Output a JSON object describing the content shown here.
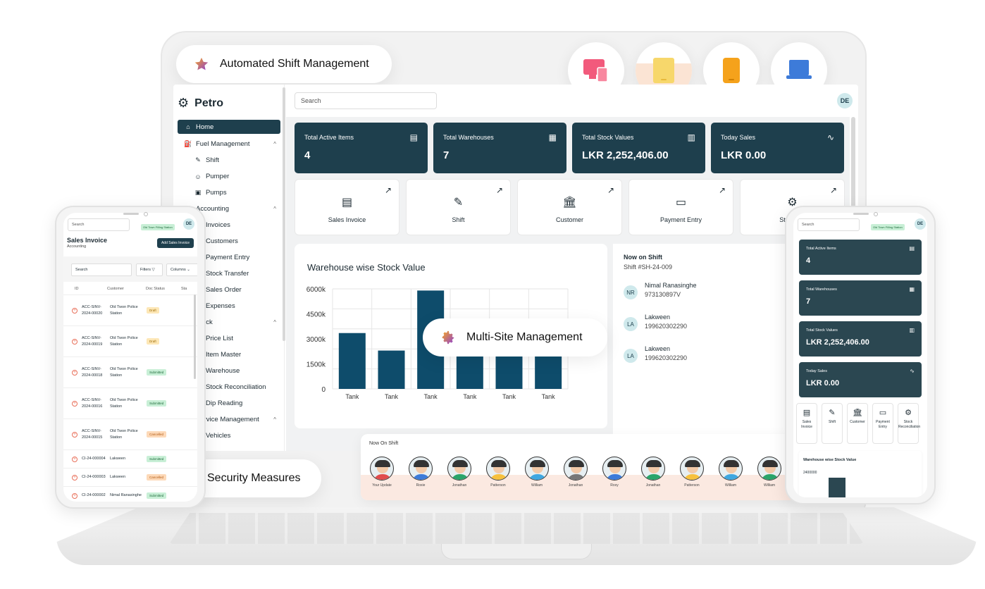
{
  "features": {
    "auto_shift": "Automated Shift Management",
    "multi_site": "Multi-Site Management",
    "security": "Security Measures"
  },
  "devices": [
    {
      "icon": "multi-device-icon",
      "color": "#f25a7c"
    },
    {
      "icon": "tablet-icon",
      "color": "#f7d76b"
    },
    {
      "icon": "phone-icon",
      "color": "#f5a21b"
    },
    {
      "icon": "laptop-icon",
      "color": "#3d7bd9"
    }
  ],
  "app": {
    "brand": "Petro",
    "search_placeholder": "Search",
    "user_initials": "DE",
    "nav": [
      {
        "label": "Home",
        "icon": "home-icon",
        "active": true
      },
      {
        "label": "Fuel Management",
        "icon": "fuel-icon"
      },
      {
        "label": "Shift",
        "icon": "shift-icon"
      },
      {
        "label": "Pumper",
        "icon": "pumper-icon"
      },
      {
        "label": "Pumps",
        "icon": "pumps-icon"
      },
      {
        "label": "Accounting"
      },
      {
        "label": "Invoices"
      },
      {
        "label": "Customers"
      },
      {
        "label": "Payment Entry"
      },
      {
        "label": "Stock Transfer"
      },
      {
        "label": "Sales Order"
      },
      {
        "label": "Expenses"
      },
      {
        "label": "Stock"
      },
      {
        "label": "Price List"
      },
      {
        "label": "Item Master"
      },
      {
        "label": "Warehouse"
      },
      {
        "label": "Stock Reconciliation"
      },
      {
        "label": "Dip Reading"
      },
      {
        "label": "Service Management"
      },
      {
        "label": "Vehicles"
      }
    ],
    "stats": [
      {
        "label": "Total Active Items",
        "value": "4",
        "icon": "clipboard-icon"
      },
      {
        "label": "Total Warehouses",
        "value": "7",
        "icon": "warehouse-icon"
      },
      {
        "label": "Total Stock Values",
        "value": "LKR 2,252,406.00",
        "icon": "bar-chart-icon"
      },
      {
        "label": "Today Sales",
        "value": "LKR 0.00",
        "icon": "activity-icon"
      }
    ],
    "quick_actions": [
      {
        "label": "Sales Invoice",
        "icon": "invoice-icon"
      },
      {
        "label": "Shift",
        "icon": "shift-icon"
      },
      {
        "label": "Customer",
        "icon": "bank-icon"
      },
      {
        "label": "Payment Entry",
        "icon": "payment-icon"
      },
      {
        "label": "Stock Re",
        "icon": "stock-icon"
      }
    ],
    "now_on_shift": {
      "title": "Now on Shift",
      "shift_label": "Shift",
      "shift_no": "#SH-24-009",
      "employees": [
        {
          "initials": "NR",
          "name": "Nimal Ranasinghe",
          "id": "973130897V"
        },
        {
          "initials": "LA",
          "name": "Lakween",
          "id": "199620302290"
        },
        {
          "initials": "LA",
          "name": "Lakween",
          "id": "199620302290"
        }
      ]
    }
  },
  "chart_data": {
    "type": "bar",
    "title": "Warehouse wise Stock Value",
    "categories": [
      "Tank",
      "Tank",
      "Tank",
      "Tank",
      "Tank",
      "Tank"
    ],
    "values": [
      3350000,
      2300000,
      5900000,
      3200000,
      3200000,
      3200000
    ],
    "yticks": [
      "6000k",
      "4500k",
      "3000k",
      "1500k",
      "0"
    ],
    "ylim": [
      0,
      6000000
    ],
    "grid": true
  },
  "strip": {
    "title": "Now On Shift",
    "people": [
      {
        "name": "Your Update",
        "shirt": "#e14c4c"
      },
      {
        "name": "Roxie",
        "shirt": "#3d7bd9"
      },
      {
        "name": "Jonathan",
        "shirt": "#2aa56a"
      },
      {
        "name": "Patterson",
        "shirt": "#f7c13e"
      },
      {
        "name": "William",
        "shirt": "#3fa7e0"
      },
      {
        "name": "Jonathan",
        "shirt": "#777777"
      },
      {
        "name": "Roxy",
        "shirt": "#3d7bd9"
      },
      {
        "name": "Jonathan",
        "shirt": "#2aa56a"
      },
      {
        "name": "Patterson",
        "shirt": "#f7c13e"
      },
      {
        "name": "William",
        "shirt": "#3fa7e0"
      },
      {
        "name": "William",
        "shirt": "#2aa56a"
      }
    ]
  },
  "phone_left": {
    "search": "Search",
    "station": "Old Town Filling Station",
    "initials": "DE",
    "title": "Sales Invoice",
    "subtitle": "Accounting",
    "add_button": "Add Sales Invoice",
    "table_search": "Search",
    "filters": "Filters",
    "columns": "Columns",
    "headers": [
      "ID",
      "Customer",
      "Doc Status",
      "Sta"
    ],
    "rows": [
      {
        "id": "ACC-SINV-2024-00020",
        "customer": "Old Twon Police Station",
        "status": "Draft",
        "cls": "b-draft"
      },
      {
        "id": "ACC-SINV-2024-00019",
        "customer": "Old Twon Police Station",
        "status": "Draft",
        "cls": "b-draft"
      },
      {
        "id": "ACC-SINV-2024-00018",
        "customer": "Old Twon Police Station",
        "status": "Submitted",
        "cls": "b-sub"
      },
      {
        "id": "ACC-SINV-2024-00016",
        "customer": "Old Twon Police Station",
        "status": "Submitted",
        "cls": "b-sub"
      },
      {
        "id": "ACC-SINV-2024-00015",
        "customer": "Old Twon Police Station",
        "status": "Cancelled",
        "cls": "b-can"
      },
      {
        "id": "CI-24-000004",
        "customer": "Lakween",
        "status": "Submitted",
        "cls": "b-sub"
      },
      {
        "id": "CI-24-000003",
        "customer": "Lakween",
        "status": "Cancelled",
        "cls": "b-can"
      },
      {
        "id": "CI-24-000002",
        "customer": "Nimal Ranasinghe",
        "status": "Submitted",
        "cls": "b-sub"
      }
    ]
  },
  "phone_right": {
    "search": "Search",
    "station": "Old Town Filling Station",
    "initials": "DE",
    "stats": [
      {
        "label": "Total Active Items",
        "value": "4"
      },
      {
        "label": "Total Warehouses",
        "value": "7"
      },
      {
        "label": "Total Stock Values",
        "value": "LKR 2,252,406.00"
      },
      {
        "label": "Today Sales",
        "value": "LKR 0.00"
      }
    ],
    "quick": [
      "Sales Invoice",
      "Shift",
      "Customer",
      "Payment Entry",
      "Stock Reconciliation"
    ],
    "chart_title": "Warehouse wise Stock Value",
    "chart_y": "2400000"
  }
}
